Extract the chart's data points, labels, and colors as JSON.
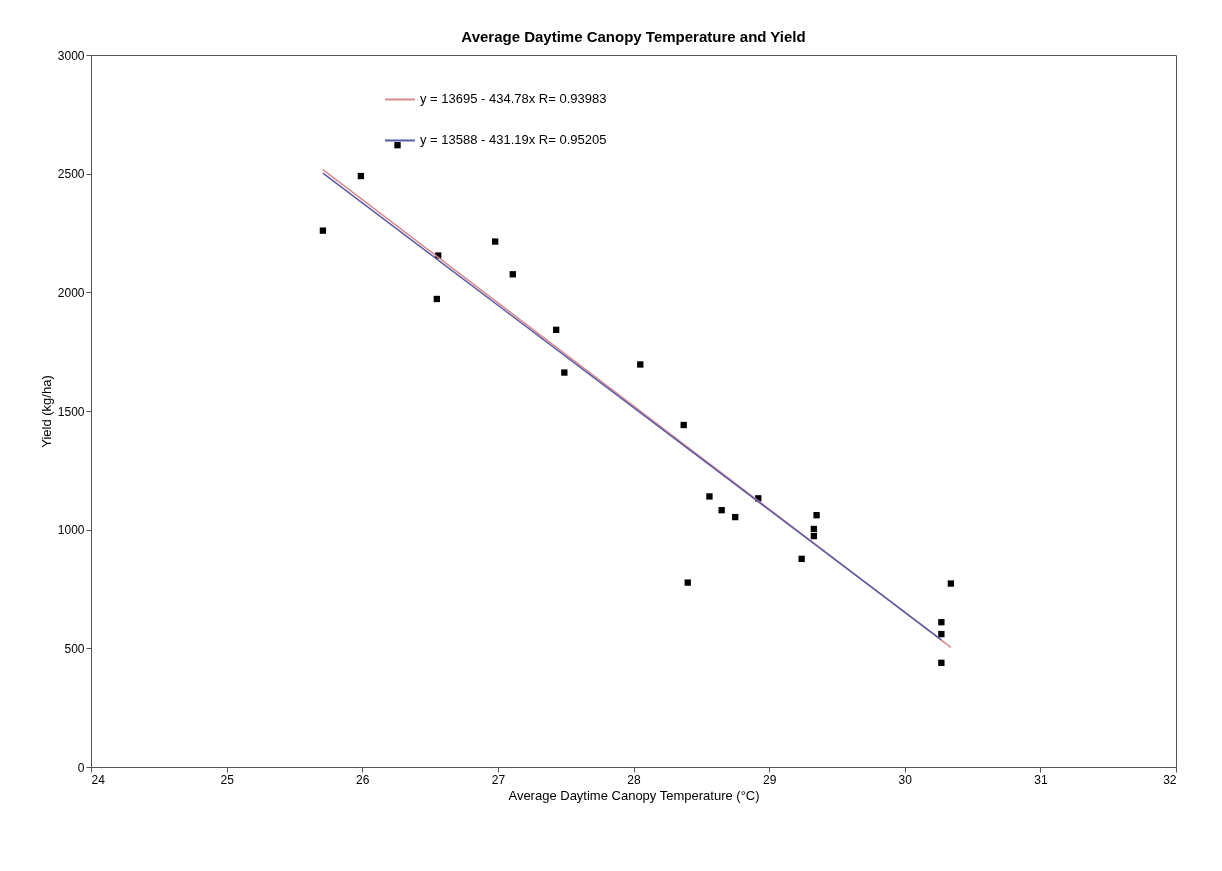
{
  "chart_data": {
    "type": "scatter",
    "title": "Average Daytime Canopy Temperature and Yield",
    "xlabel": "Average Daytime Canopy Temperature (°C)",
    "ylabel": "Yield (kg/ha)",
    "xlim": [
      24,
      32
    ],
    "xticks": [
      24,
      25,
      26,
      27,
      28,
      29,
      30,
      31,
      32
    ],
    "ylim": [
      0,
      3000
    ],
    "yticks": [
      0,
      500,
      1000,
      1500,
      2000,
      2500,
      3000
    ],
    "grid": false,
    "legend": "top left",
    "series": [
      {
        "marker": "square",
        "color": "#000000",
        "x": [
          26.26,
          25.99,
          25.71,
          26.56,
          26.98,
          27.11,
          26.55,
          27.43,
          27.49,
          28.05,
          28.37,
          28.56,
          28.65,
          28.75,
          28.92,
          29.35,
          29.33,
          29.33,
          29.24,
          28.4,
          30.34,
          30.27,
          30.27,
          30.27
        ],
        "values": [
          2620,
          2490,
          2260,
          2155,
          2214,
          2076,
          1972,
          1842,
          1662,
          1696,
          1441,
          1140,
          1082,
          1053,
          1132,
          1061,
          1003,
          973,
          877,
          777,
          773,
          610,
          560,
          439
        ]
      },
      {
        "type": "line",
        "name": "y = 13695 - 434.78x   R= 0.93983",
        "color": "#d98a8a",
        "marker": "none",
        "line_style": "solid",
        "x": [
          25.71,
          30.34
        ],
        "values": [
          2517,
          504
        ]
      },
      {
        "type": "line",
        "name": "y = 13588 - 431.19x   R= 0.95205",
        "color": "#5a5aa8",
        "marker": "none",
        "line_style": "solid",
        "x": [
          25.71,
          30.27
        ],
        "values": [
          2502,
          536
        ]
      }
    ]
  }
}
